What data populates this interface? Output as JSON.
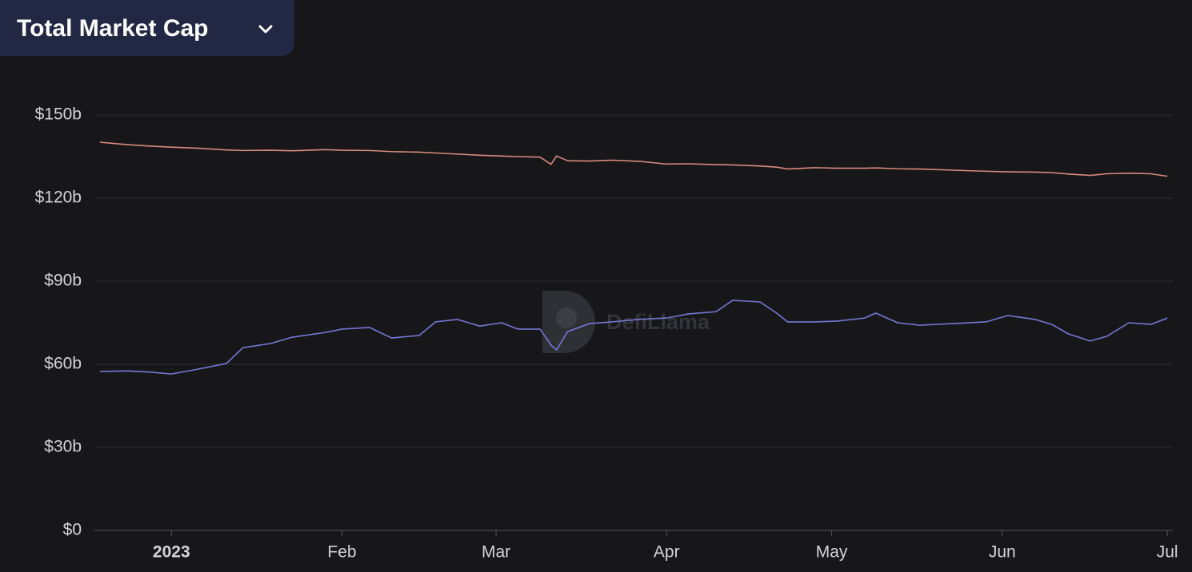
{
  "chart_data": {
    "type": "line",
    "title": "Total Market Cap",
    "watermark": "DefiLlama",
    "grid": true,
    "x": [
      -13,
      -8,
      -4,
      0,
      5,
      10,
      13,
      18,
      22,
      28,
      31,
      36,
      40,
      45,
      48,
      52,
      56,
      60,
      63,
      67,
      69,
      70,
      72,
      76,
      80,
      85,
      90,
      94,
      99,
      102,
      107,
      110,
      112,
      117,
      121,
      126,
      128,
      132,
      136,
      142,
      148,
      152,
      157,
      160,
      163,
      167,
      170,
      174,
      178,
      181
    ],
    "xlim": [
      -14,
      182
    ],
    "xticks": [
      {
        "value": 0,
        "label": "2023"
      },
      {
        "value": 31,
        "label": "Feb"
      },
      {
        "value": 59,
        "label": "Mar"
      },
      {
        "value": 90,
        "label": "Apr"
      },
      {
        "value": 120,
        "label": "May"
      },
      {
        "value": 151,
        "label": "Jun"
      },
      {
        "value": 181,
        "label": "Jul"
      }
    ],
    "ylim": [
      0,
      150
    ],
    "yticks": [
      {
        "value": 0,
        "label": "$0"
      },
      {
        "value": 30,
        "label": "$30b"
      },
      {
        "value": 60,
        "label": "$60b"
      },
      {
        "value": 90,
        "label": "$90b"
      },
      {
        "value": 120,
        "label": "$120b"
      },
      {
        "value": 150,
        "label": "$150b"
      }
    ],
    "series": [
      {
        "color": "#d98a7e",
        "values": [
          140.2,
          139.3,
          138.8,
          138.4,
          138,
          137.4,
          137.2,
          137.3,
          137.1,
          137.5,
          137.3,
          137.2,
          136.8,
          136.6,
          136.3,
          135.9,
          135.5,
          135.2,
          135,
          134.8,
          132.2,
          135.2,
          133.5,
          133.4,
          133.7,
          133.3,
          132.3,
          132.4,
          132.1,
          132,
          131.6,
          131.2,
          130.5,
          131,
          130.8,
          130.8,
          130.9,
          130.6,
          130.5,
          130.1,
          129.7,
          129.5,
          129.4,
          129.2,
          128.7,
          128.2,
          128.8,
          129,
          128.8,
          127.9
        ]
      },
      {
        "color": "#7478d4",
        "values": [
          57.4,
          57.6,
          57.2,
          56.5,
          58.3,
          60.3,
          66,
          67.5,
          69.8,
          71.5,
          72.7,
          73.3,
          69.5,
          70.4,
          75.3,
          76.2,
          73.8,
          75,
          72.7,
          72.7,
          66.9,
          65.2,
          71.8,
          74.7,
          75.3,
          76.2,
          76.7,
          78.2,
          79,
          83.1,
          82.5,
          78.5,
          75.3,
          75.3,
          75.6,
          76.7,
          78.5,
          75,
          74.1,
          74.7,
          75.3,
          77.6,
          76.2,
          74.4,
          71,
          68.4,
          70.1,
          75,
          74.4,
          76.7
        ]
      }
    ]
  }
}
